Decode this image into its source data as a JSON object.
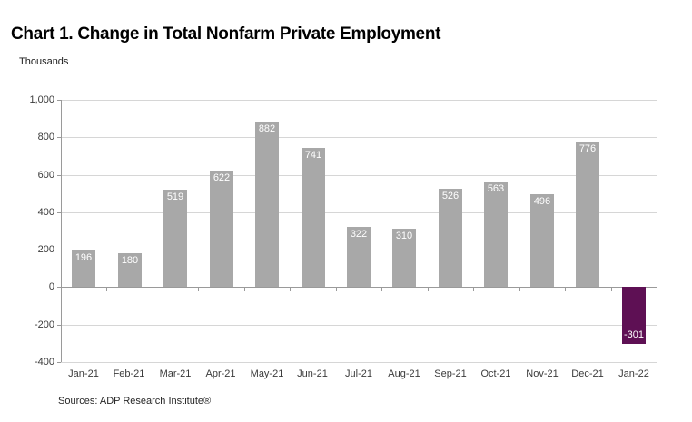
{
  "header": {
    "title": "Chart 1. Change in Total Nonfarm Private Employment",
    "units_label": "Thousands"
  },
  "footer": {
    "source": "Sources: ADP Research Institute®"
  },
  "chart_data": {
    "type": "bar",
    "title": "Chart 1. Change in Total Nonfarm Private Employment",
    "units": "Thousands",
    "categories": [
      "Jan-21",
      "Feb-21",
      "Mar-21",
      "Apr-21",
      "May-21",
      "Jun-21",
      "Jul-21",
      "Aug-21",
      "Sep-21",
      "Oct-21",
      "Nov-21",
      "Dec-21",
      "Jan-22"
    ],
    "values": [
      196,
      180,
      519,
      622,
      882,
      741,
      322,
      310,
      526,
      563,
      496,
      776,
      -301
    ],
    "data_labels": [
      "196",
      "180",
      "519",
      "622",
      "882",
      "741",
      "322",
      "310",
      "526",
      "563",
      "496",
      "776",
      "-301"
    ],
    "xlabel": "",
    "ylabel": "Thousands",
    "ylim": [
      -400,
      1000
    ],
    "ytick_values": [
      1000,
      800,
      600,
      400,
      200,
      0,
      -200,
      -400
    ],
    "ytick_labels": [
      "1,000",
      "800",
      "600",
      "400",
      "200",
      "0",
      "-200",
      "-400"
    ],
    "grid": true,
    "legend": "none",
    "colors": {
      "bar": "#a8a8a8",
      "negative_bar": "#5e1054",
      "gridline": "#d6d6d6",
      "axis_line": "#9a9a9a",
      "data_label_text": "#ffffff"
    },
    "source_note": "Sources: ADP Research Institute®"
  }
}
